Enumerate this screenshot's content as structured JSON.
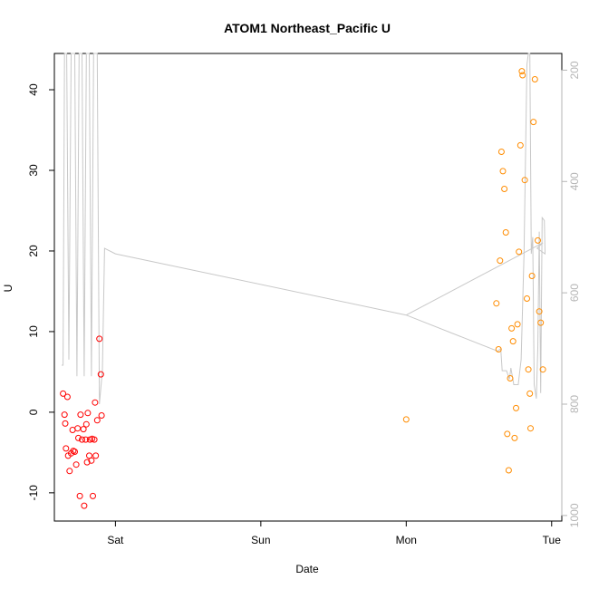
{
  "chart_data": {
    "type": "scatter",
    "title": "ATOM1 Northeast_Pacific U",
    "xlabel": "Date",
    "ylabel": "U",
    "x_ticks": [
      "Sat",
      "Sun",
      "Mon",
      "Tue"
    ],
    "x_range_days": [
      -0.42,
      3.07
    ],
    "y_ticks": [
      -10,
      0,
      10,
      20,
      30,
      40
    ],
    "ylim": [
      -13.5,
      44.5
    ],
    "y2_ticks": [
      200,
      400,
      600,
      800,
      1000
    ],
    "y2lim": [
      1010,
      170
    ],
    "grid": false,
    "series": [
      {
        "color": "#ff0000",
        "points": [
          [
            -0.36,
            2.3
          ],
          [
            -0.35,
            -0.3
          ],
          [
            -0.345,
            -1.4
          ],
          [
            -0.34,
            -4.5
          ],
          [
            -0.33,
            1.9
          ],
          [
            -0.325,
            -5.4
          ],
          [
            -0.315,
            -7.3
          ],
          [
            -0.305,
            -5.1
          ],
          [
            -0.295,
            -2.2
          ],
          [
            -0.29,
            -4.8
          ],
          [
            -0.28,
            -4.9
          ],
          [
            -0.27,
            -6.5
          ],
          [
            -0.26,
            -2.0
          ],
          [
            -0.255,
            -3.2
          ],
          [
            -0.245,
            -10.4
          ],
          [
            -0.24,
            -0.3
          ],
          [
            -0.23,
            -3.4
          ],
          [
            -0.22,
            -2.1
          ],
          [
            -0.215,
            -11.6
          ],
          [
            -0.205,
            -3.4
          ],
          [
            -0.2,
            -1.5
          ],
          [
            -0.195,
            -6.2
          ],
          [
            -0.19,
            -0.1
          ],
          [
            -0.18,
            -5.4
          ],
          [
            -0.175,
            -3.4
          ],
          [
            -0.165,
            -6.0
          ],
          [
            -0.16,
            -3.3
          ],
          [
            -0.155,
            -10.4
          ],
          [
            -0.145,
            -3.4
          ],
          [
            -0.14,
            1.2
          ],
          [
            -0.135,
            -5.4
          ],
          [
            -0.125,
            -1.0
          ],
          [
            -0.11,
            9.1
          ],
          [
            -0.1,
            4.7
          ],
          [
            -0.095,
            -0.4
          ]
        ]
      },
      {
        "color": "#ff8c00",
        "points": [
          [
            2.0,
            -0.9
          ],
          [
            2.62,
            13.5
          ],
          [
            2.635,
            7.8
          ],
          [
            2.645,
            18.8
          ],
          [
            2.655,
            32.3
          ],
          [
            2.665,
            29.9
          ],
          [
            2.675,
            27.7
          ],
          [
            2.685,
            22.3
          ],
          [
            2.695,
            -2.7
          ],
          [
            2.705,
            -7.2
          ],
          [
            2.715,
            4.2
          ],
          [
            2.725,
            10.4
          ],
          [
            2.735,
            8.8
          ],
          [
            2.745,
            -3.2
          ],
          [
            2.755,
            0.5
          ],
          [
            2.765,
            10.9
          ],
          [
            2.775,
            19.9
          ],
          [
            2.785,
            33.1
          ],
          [
            2.795,
            42.3
          ],
          [
            2.8,
            41.8
          ],
          [
            2.815,
            28.8
          ],
          [
            2.83,
            14.1
          ],
          [
            2.84,
            5.3
          ],
          [
            2.85,
            2.3
          ],
          [
            2.855,
            -2.0
          ],
          [
            2.865,
            16.9
          ],
          [
            2.875,
            36.0
          ],
          [
            2.885,
            41.3
          ],
          [
            2.905,
            21.3
          ],
          [
            2.915,
            12.5
          ],
          [
            2.925,
            11.1
          ],
          [
            2.94,
            5.3
          ]
        ]
      }
    ],
    "line_series": {
      "color": "#c8c8c8",
      "axis": "right",
      "points": [
        [
          -0.37,
          730
        ],
        [
          -0.36,
          730
        ],
        [
          -0.35,
          170
        ],
        [
          -0.335,
          170
        ],
        [
          -0.32,
          720
        ],
        [
          -0.305,
          170
        ],
        [
          -0.28,
          170
        ],
        [
          -0.265,
          750
        ],
        [
          -0.25,
          170
        ],
        [
          -0.23,
          170
        ],
        [
          -0.215,
          750
        ],
        [
          -0.2,
          170
        ],
        [
          -0.18,
          170
        ],
        [
          -0.165,
          750
        ],
        [
          -0.15,
          170
        ],
        [
          -0.125,
          170
        ],
        [
          -0.11,
          800
        ],
        [
          -0.09,
          740
        ],
        [
          -0.075,
          520
        ],
        [
          0.0,
          530
        ],
        [
          2.0,
          640
        ],
        [
          2.63,
          705
        ],
        [
          2.65,
          700
        ],
        [
          2.66,
          740
        ],
        [
          2.69,
          740
        ],
        [
          2.71,
          755
        ],
        [
          2.72,
          735
        ],
        [
          2.74,
          765
        ],
        [
          2.77,
          765
        ],
        [
          2.79,
          720
        ],
        [
          2.81,
          530
        ],
        [
          2.83,
          190
        ],
        [
          2.84,
          170
        ],
        [
          2.85,
          170
        ],
        [
          2.86,
          530
        ],
        [
          2.87,
          500
        ],
        [
          2.88,
          765
        ],
        [
          2.895,
          790
        ],
        [
          2.905,
          700
        ],
        [
          2.915,
          490
        ],
        [
          2.925,
          780
        ],
        [
          2.935,
          465
        ],
        [
          2.95,
          470
        ],
        [
          2.955,
          530
        ],
        [
          2.9,
          520
        ],
        [
          2.94,
          510
        ],
        [
          2.0,
          640
        ]
      ]
    }
  }
}
